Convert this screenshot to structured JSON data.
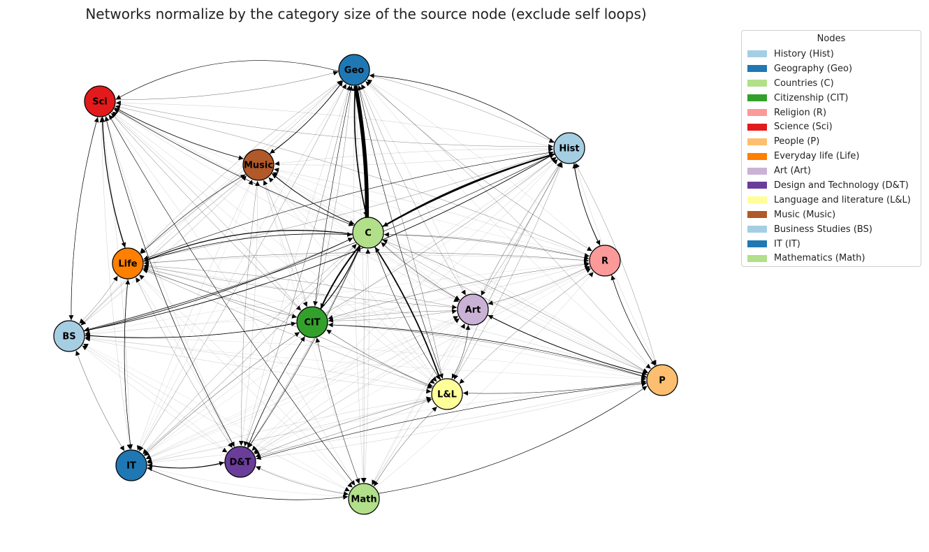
{
  "title": "Networks normalize by the category size of the source node (exclude self loops)",
  "legend": {
    "title": "Nodes",
    "items": [
      {
        "label": "History (Hist)",
        "color": "#a6cee3"
      },
      {
        "label": "Geography (Geo)",
        "color": "#1f78b4"
      },
      {
        "label": "Countries (C)",
        "color": "#b2df8a"
      },
      {
        "label": "Citizenship (CIT)",
        "color": "#33a02c"
      },
      {
        "label": "Religion (R)",
        "color": "#fb9a99"
      },
      {
        "label": "Science (Sci)",
        "color": "#e31a1c"
      },
      {
        "label": "People (P)",
        "color": "#fdbf6f"
      },
      {
        "label": "Everyday life (Life)",
        "color": "#ff7f00"
      },
      {
        "label": "Art (Art)",
        "color": "#cab2d6"
      },
      {
        "label": "Design and Technology (D&T)",
        "color": "#6a3d9a"
      },
      {
        "label": "Language and literature (L&L)",
        "color": "#ffff99"
      },
      {
        "label": "Music (Music)",
        "color": "#b15928"
      },
      {
        "label": "Business Studies (BS)",
        "color": "#a6cee3"
      },
      {
        "label": "IT (IT)",
        "color": "#1f78b4"
      },
      {
        "label": "Mathematics (Math)",
        "color": "#b2df8a"
      }
    ]
  },
  "nodes": [
    {
      "id": "Geo",
      "label": "Geo",
      "color": "#1f78b4"
    },
    {
      "id": "Sci",
      "label": "Sci",
      "color": "#e31a1c"
    },
    {
      "id": "Music",
      "label": "Music",
      "color": "#b15928"
    },
    {
      "id": "Hist",
      "label": "Hist",
      "color": "#a6cee3"
    },
    {
      "id": "C",
      "label": "C",
      "color": "#b2df8a"
    },
    {
      "id": "R",
      "label": "R",
      "color": "#fb9a99"
    },
    {
      "id": "Life",
      "label": "Life",
      "color": "#ff7f00"
    },
    {
      "id": "Art",
      "label": "Art",
      "color": "#cab2d6"
    },
    {
      "id": "CIT",
      "label": "CIT",
      "color": "#33a02c"
    },
    {
      "id": "BS",
      "label": "BS",
      "color": "#a6cee3"
    },
    {
      "id": "P",
      "label": "P",
      "color": "#fdbf6f"
    },
    {
      "id": "LL",
      "label": "L&L",
      "color": "#ffff99"
    },
    {
      "id": "IT",
      "label": "IT",
      "color": "#1f78b4"
    },
    {
      "id": "DT",
      "label": "D&T",
      "color": "#6a3d9a"
    },
    {
      "id": "Math",
      "label": "Math",
      "color": "#b2df8a"
    }
  ]
}
